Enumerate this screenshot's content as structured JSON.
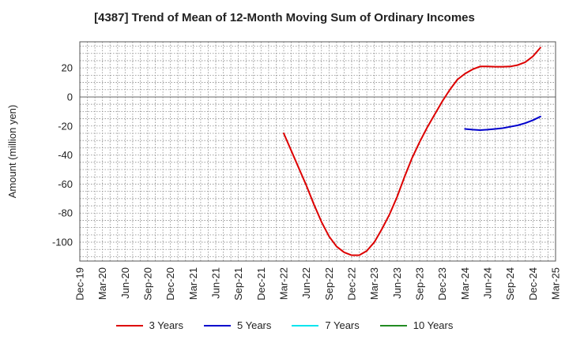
{
  "chart_data": {
    "type": "line",
    "title": "[4387]  Trend of Mean of 12-Month Moving Sum of Ordinary Incomes",
    "xlabel": "",
    "ylabel": "Amount (million yen)",
    "ylim": [
      -113,
      38
    ],
    "yticks": [
      20,
      0,
      -20,
      -40,
      -60,
      -80,
      -100
    ],
    "ytick_labels": [
      "20",
      "0",
      "-20",
      "-40",
      "-60",
      "-80",
      "-100"
    ],
    "x_months": {
      "start": "Dec-19",
      "end": "Mar-25"
    },
    "xtick_labels": [
      "Dec-19",
      "Mar-20",
      "Jun-20",
      "Sep-20",
      "Dec-20",
      "Mar-21",
      "Jun-21",
      "Sep-21",
      "Dec-21",
      "Mar-22",
      "Jun-22",
      "Sep-22",
      "Dec-22",
      "Mar-23",
      "Jun-23",
      "Sep-23",
      "Dec-23",
      "Mar-24",
      "Jun-24",
      "Sep-24",
      "Dec-24",
      "Mar-25"
    ],
    "grid": true,
    "legend_position": "bottom",
    "series": [
      {
        "name": "3 Years",
        "color": "#dd0000",
        "start_index": 27,
        "values": [
          -25,
          -37,
          -49,
          -61,
          -74,
          -86,
          -96,
          -103,
          -107,
          -109,
          -109,
          -106,
          -100,
          -91,
          -81,
          -69,
          -55,
          -42,
          -31,
          -21,
          -12,
          -3,
          5,
          12,
          16,
          19,
          21,
          21,
          20.8,
          20.8,
          21,
          22,
          24,
          28,
          34
        ]
      },
      {
        "name": "5 Years",
        "color": "#0000cc",
        "start_index": 51,
        "values": [
          -22,
          -22.5,
          -22.8,
          -22.5,
          -22,
          -21.5,
          -20.5,
          -19.5,
          -18,
          -16,
          -13.5
        ]
      },
      {
        "name": "7 Years",
        "color": "#00e5ee",
        "start_index": 0,
        "values": []
      },
      {
        "name": "10 Years",
        "color": "#228b22",
        "start_index": 0,
        "values": []
      }
    ]
  }
}
